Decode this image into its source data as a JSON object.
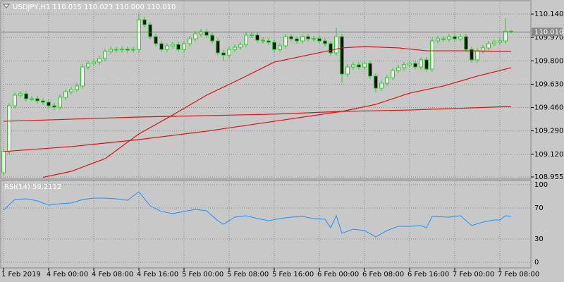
{
  "chart_data": [
    {
      "type": "candlestick",
      "title": "USDJPY,H1  110.015 110.023 110.000 110.010",
      "categories": [
        "1 Feb 2019",
        null,
        null,
        null,
        null,
        null,
        null,
        null,
        "4 Feb 00:00",
        null,
        null,
        null,
        null,
        null,
        null,
        null,
        "4 Feb 08:00",
        null,
        null,
        null,
        null,
        null,
        null,
        null,
        "4 Feb 16:00",
        null,
        null,
        null,
        null,
        null,
        null,
        null,
        "5 Feb 00:00",
        null,
        null,
        null,
        null,
        null,
        null,
        null,
        "5 Feb 08:00",
        null,
        null,
        null,
        null,
        null,
        null,
        null,
        "5 Feb 16:00",
        null,
        null,
        null,
        null,
        null,
        null,
        null,
        "6 Feb 00:00",
        null,
        null,
        null,
        null,
        null,
        null,
        null,
        "6 Feb 08:00",
        null,
        null,
        null,
        null,
        null,
        null,
        null,
        "6 Feb 16:00",
        null,
        null,
        null,
        null,
        null,
        null,
        null,
        "7 Feb 00:00",
        null,
        null,
        null,
        null,
        null,
        null,
        null,
        "7 Feb 08:00",
        null,
        null
      ],
      "open": [
        108.986,
        109.14,
        109.473,
        109.55,
        109.56,
        109.524,
        109.524,
        109.509,
        109.499,
        109.473,
        109.463,
        109.535,
        109.576,
        109.591,
        109.617,
        109.755,
        109.781,
        109.791,
        109.817,
        109.868,
        109.883,
        109.88,
        109.885,
        109.878,
        109.883,
        110.099,
        110.063,
        109.976,
        109.925,
        109.883,
        109.909,
        109.919,
        109.883,
        109.925,
        109.96,
        109.996,
        110.012,
        109.986,
        109.945,
        109.858,
        109.842,
        109.883,
        109.899,
        109.919,
        109.986,
        109.988,
        109.95,
        109.945,
        109.935,
        109.883,
        109.909,
        109.976,
        109.96,
        109.945,
        109.976,
        109.96,
        109.962,
        109.945,
        109.925,
        109.858,
        109.976,
        109.704,
        109.755,
        109.771,
        109.755,
        109.781,
        109.689,
        109.601,
        109.637,
        109.678,
        109.73,
        109.75,
        109.771,
        109.781,
        109.755,
        109.807,
        109.74,
        109.945,
        109.96,
        109.958,
        109.976,
        109.96,
        109.976,
        109.883,
        109.807,
        109.873,
        109.894,
        109.925,
        109.935,
        109.945,
        110.015
      ],
      "high": [
        109.16,
        109.493,
        109.57,
        109.58,
        109.58,
        109.544,
        109.544,
        109.529,
        109.519,
        109.493,
        109.555,
        109.596,
        109.611,
        109.637,
        109.775,
        109.801,
        109.811,
        109.837,
        109.888,
        109.903,
        109.903,
        109.905,
        109.905,
        109.903,
        110.14,
        110.119,
        110.083,
        109.996,
        109.945,
        109.929,
        109.939,
        109.939,
        109.945,
        109.98,
        110.016,
        110.032,
        110.032,
        110.006,
        109.965,
        109.878,
        109.903,
        109.919,
        109.939,
        110.006,
        110.008,
        110.008,
        109.97,
        109.965,
        109.955,
        109.929,
        109.996,
        109.996,
        109.98,
        109.996,
        109.996,
        109.982,
        109.982,
        109.965,
        109.945,
        110.04,
        109.996,
        109.775,
        109.791,
        109.791,
        109.801,
        109.801,
        109.709,
        109.657,
        109.698,
        109.75,
        109.77,
        109.791,
        109.801,
        109.801,
        109.827,
        109.827,
        109.965,
        109.98,
        109.98,
        109.996,
        109.996,
        109.996,
        109.996,
        109.903,
        109.893,
        109.914,
        109.945,
        109.955,
        109.965,
        110.11,
        110.023
      ],
      "low": [
        108.966,
        109.12,
        109.453,
        109.53,
        109.504,
        109.504,
        109.489,
        109.479,
        109.453,
        109.443,
        109.443,
        109.515,
        109.556,
        109.571,
        109.597,
        109.735,
        109.761,
        109.771,
        109.797,
        109.848,
        109.86,
        109.86,
        109.858,
        109.858,
        109.863,
        110.043,
        109.956,
        109.905,
        109.863,
        109.863,
        109.889,
        109.863,
        109.863,
        109.905,
        109.94,
        109.976,
        109.966,
        109.925,
        109.838,
        109.802,
        109.822,
        109.863,
        109.879,
        109.899,
        109.966,
        109.93,
        109.925,
        109.915,
        109.863,
        109.863,
        109.889,
        109.94,
        109.925,
        109.925,
        109.94,
        109.94,
        109.925,
        109.905,
        109.838,
        109.838,
        109.64,
        109.684,
        109.735,
        109.735,
        109.735,
        109.669,
        109.57,
        109.581,
        109.617,
        109.658,
        109.71,
        109.73,
        109.751,
        109.735,
        109.735,
        109.72,
        109.72,
        109.925,
        109.938,
        109.938,
        109.94,
        109.94,
        109.863,
        109.787,
        109.787,
        109.853,
        109.874,
        109.905,
        109.915,
        109.925,
        110.0
      ],
      "close": [
        109.14,
        109.473,
        109.55,
        109.56,
        109.524,
        109.524,
        109.509,
        109.499,
        109.473,
        109.463,
        109.535,
        109.576,
        109.591,
        109.617,
        109.755,
        109.781,
        109.791,
        109.817,
        109.868,
        109.883,
        109.88,
        109.885,
        109.878,
        109.883,
        110.099,
        110.063,
        109.976,
        109.925,
        109.883,
        109.909,
        109.919,
        109.883,
        109.925,
        109.96,
        109.996,
        110.012,
        109.986,
        109.945,
        109.858,
        109.842,
        109.883,
        109.899,
        109.919,
        109.986,
        109.988,
        109.95,
        109.945,
        109.935,
        109.883,
        109.909,
        109.976,
        109.96,
        109.945,
        109.976,
        109.96,
        109.962,
        109.945,
        109.925,
        109.858,
        109.976,
        109.704,
        109.755,
        109.771,
        109.755,
        109.781,
        109.689,
        109.601,
        109.637,
        109.678,
        109.73,
        109.75,
        109.771,
        109.781,
        109.755,
        109.807,
        109.74,
        109.945,
        109.96,
        109.958,
        109.976,
        109.96,
        109.976,
        109.883,
        109.807,
        109.873,
        109.894,
        109.925,
        109.935,
        109.945,
        110.015,
        110.01
      ],
      "up_color": "#ffffff",
      "down_color": "#000000",
      "wick_color": "#22d022",
      "overlays": [
        {
          "type": "line",
          "color": "#e01010",
          "x": [
            7,
            12,
            18,
            24,
            30,
            36,
            42,
            48,
            54,
            60,
            64,
            70,
            75,
            82,
            90
          ],
          "values": [
            108.952,
            108.996,
            109.088,
            109.268,
            109.406,
            109.55,
            109.668,
            109.791,
            109.842,
            109.894,
            109.904,
            109.894,
            109.873,
            109.873,
            109.868
          ]
        },
        {
          "type": "line",
          "color": "#e01010",
          "x": [
            0,
            12,
            24,
            36,
            48,
            60,
            66,
            72,
            78,
            84,
            90
          ],
          "values": [
            109.14,
            109.176,
            109.227,
            109.288,
            109.36,
            109.432,
            109.483,
            109.565,
            109.617,
            109.689,
            109.75
          ]
        },
        {
          "type": "line",
          "color": "#e01010",
          "x": [
            0,
            24,
            48,
            60,
            72,
            90
          ],
          "values": [
            109.36,
            109.391,
            109.412,
            109.432,
            109.442,
            109.468
          ]
        }
      ],
      "current_price": {
        "value": 110.01,
        "label": "110.010"
      },
      "ylim": [
        108.955,
        110.14
      ],
      "yticks": [
        {
          "value": 108.955,
          "label": "108.955"
        },
        {
          "value": 109.12,
          "label": "109.120"
        },
        {
          "value": 109.29,
          "label": "109.290"
        },
        {
          "value": 109.46,
          "label": "109.460"
        },
        {
          "value": 109.63,
          "label": "109.630"
        },
        {
          "value": 109.8,
          "label": "109.800"
        },
        {
          "value": 109.97,
          "label": "109.970"
        },
        {
          "value": 110.14,
          "label": "110.140"
        }
      ],
      "grid": true
    },
    {
      "type": "line",
      "title": "RSI(14) 59.2112",
      "color": "#1e90ff",
      "x": [
        0,
        2,
        4,
        6,
        8,
        10,
        12,
        14,
        16,
        18,
        20,
        22,
        24,
        26,
        28,
        30,
        32,
        34,
        36,
        38,
        39,
        41,
        43,
        45,
        47,
        49,
        51,
        53,
        55,
        57,
        58,
        59,
        60,
        62,
        64,
        66,
        68,
        70,
        72,
        74,
        75,
        76,
        79,
        81,
        83,
        85,
        87,
        88,
        89,
        90
      ],
      "values": [
        67.3,
        80.9,
        81.8,
        79.1,
        73.6,
        75.5,
        76.4,
        80.9,
        82.7,
        82.7,
        81.8,
        80.0,
        90.9,
        72.7,
        65.5,
        62.7,
        65.5,
        68.2,
        66.4,
        53.6,
        49.1,
        58.2,
        60.0,
        56.4,
        53.6,
        56.4,
        58.2,
        59.1,
        56.4,
        55.5,
        44.5,
        60.0,
        37.3,
        42.7,
        40.9,
        32.7,
        40.9,
        46.4,
        46.4,
        47.3,
        44.5,
        59.1,
        58.2,
        60.0,
        47.3,
        51.8,
        54.5,
        54.5,
        60.0,
        59.2112
      ],
      "ylim": [
        0,
        100
      ],
      "yticks": [
        0,
        30,
        70,
        100
      ],
      "grid": true
    }
  ]
}
